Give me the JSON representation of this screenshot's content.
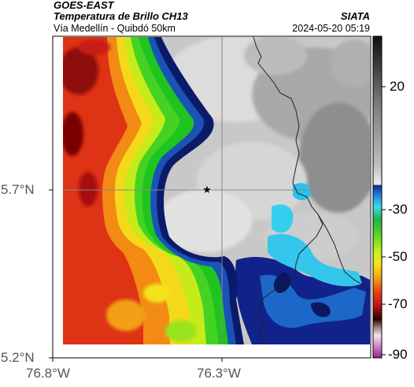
{
  "header": {
    "satellite": "GOES-EAST",
    "product": "Temperatura de Brillo CH13",
    "region": "Vía Medellín - Quibdó 50km",
    "agency": "SIATA",
    "datetime": "2024-05-20 05:19"
  },
  "map": {
    "lat_labels": [
      "5.7°N",
      "5.2°N"
    ],
    "lon_labels": [
      "76.8°W",
      "76.3°W"
    ],
    "marker_icon": "star-icon",
    "marker_lon": -76.32,
    "marker_lat": 5.7
  },
  "colorbar": {
    "tick_labels": [
      "20",
      "-30",
      "-50",
      "-70",
      "-90"
    ],
    "colors": {
      "warm_black": "#111111",
      "mid_gray": "#8f8f8f",
      "light_gray": "#ececec",
      "cyan": "#29c8ef",
      "blue": "#1850b4",
      "navy": "#0c1a6a",
      "green": "#22c419",
      "yellow": "#f3e01b",
      "orange": "#f07d13",
      "red": "#dc2813",
      "dark_red": "#550000",
      "pink": "#e0b7d8",
      "magenta": "#a82397"
    }
  }
}
